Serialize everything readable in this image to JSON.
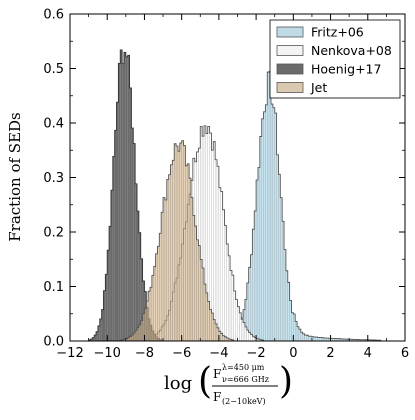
{
  "chart_data": {
    "type": "histogram",
    "xlim": [
      -12,
      6
    ],
    "ylim": [
      0,
      0.6
    ],
    "x_ticks": [
      -12,
      -10,
      -8,
      -6,
      -4,
      -2,
      0,
      2,
      4,
      6
    ],
    "x_tick_labels": [
      "−12",
      "−10",
      "−8",
      "−6",
      "−4",
      "−2",
      "0",
      "2",
      "4",
      "6"
    ],
    "y_ticks": [
      0,
      0.1,
      0.2,
      0.3,
      0.4,
      0.5,
      0.6
    ],
    "y_tick_labels": [
      "0.0",
      "0.1",
      "0.2",
      "0.3",
      "0.4",
      "0.5",
      "0.6"
    ],
    "ylabel": "Fraction of SEDs",
    "xlabel": {
      "prefix": "log",
      "num_main": "F",
      "num_super": "λ=450 μm",
      "num_sub": "ν=666 GHz",
      "den_main": "F",
      "den_sub": "(2−10keV)"
    },
    "legend_position": "top-right",
    "series": [
      {
        "name": "Fritz+06",
        "fill": "#c8e4f0",
        "opacity": 1.0,
        "edge": "#555555",
        "hatch": "vertical",
        "profile": {
          "center": -1.3,
          "peak": 0.47,
          "sigma_left": 0.66,
          "sigma_right": 0.6,
          "tail_amp": 0.012,
          "tail_decay": 2.3,
          "tail_start": 0.0,
          "tail_end": 5.6
        },
        "range": [
          -3.6,
          5.8
        ]
      },
      {
        "name": "Nenkova+08",
        "fill": "#ffffff",
        "opacity": 1.0,
        "edge": "#555555",
        "hatch": "vertical",
        "profile": {
          "center": -4.7,
          "peak": 0.4,
          "sigma_left": 1.0,
          "sigma_right": 0.92,
          "tail_amp": 0.0,
          "tail_decay": 1.0,
          "tail_start": 0.0,
          "tail_end": 0.0
        },
        "range": [
          -8.7,
          -1.3
        ]
      },
      {
        "name": "Hoenig+17",
        "fill": "#6b6b6b",
        "opacity": 1.0,
        "edge": "#333333",
        "hatch": "none",
        "profile": {
          "center": -9.1,
          "peak": 0.54,
          "sigma_left": 0.55,
          "sigma_right": 0.6,
          "tail_amp": 0.0,
          "tail_decay": 1.0,
          "tail_start": 0.0,
          "tail_end": 0.0
        },
        "range": [
          -11.4,
          -6.8
        ]
      },
      {
        "name": "Jet",
        "fill": "#d4b48a",
        "opacity": 0.62,
        "edge": "#555555",
        "hatch": "vertical",
        "profile": {
          "center": -6.15,
          "peak": 0.36,
          "sigma_left": 0.95,
          "sigma_right": 0.9,
          "tail_amp": 0.0,
          "tail_decay": 1.0,
          "tail_start": 0.0,
          "tail_end": 0.0
        },
        "range": [
          -9.5,
          -3.2
        ]
      }
    ],
    "bin_width": 0.1
  }
}
